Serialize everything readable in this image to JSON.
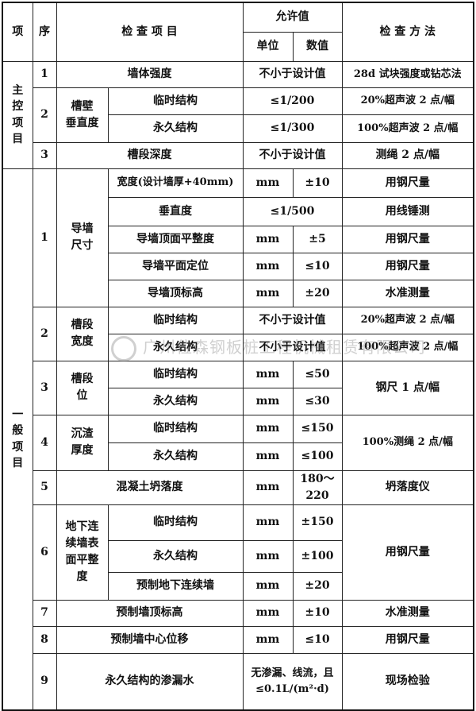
{
  "header": {
    "xiang": "项",
    "xu": "序",
    "item": "检 查 项 目",
    "allow": "允许值",
    "unit": "单位",
    "value": "数值",
    "method": "检 查 方 法"
  },
  "main": {
    "label": "主控项目",
    "r1": {
      "no": "1",
      "item": "墙体强度",
      "value": "不小于设计值",
      "method": "28d 试块强度或钻芯法"
    },
    "r2": {
      "no": "2",
      "group": "槽壁垂直度",
      "a": {
        "item": "临时结构",
        "value": "≤1/200",
        "method": "20%超声波 2 点/幅"
      },
      "b": {
        "item": "永久结构",
        "value": "≤1/300",
        "method": "100%超声波 2 点/幅"
      }
    },
    "r3": {
      "no": "3",
      "item": "槽段深度",
      "value": "不小于设计值",
      "method": "测绳 2 点/幅"
    }
  },
  "general": {
    "label": "一般项目",
    "r1": {
      "no": "1",
      "group": "导墙尺寸",
      "a": {
        "item": "宽度(设计墙厚+40mm)",
        "unit": "mm",
        "value": "±10",
        "method": "用钢尺量"
      },
      "b": {
        "item": "垂直度",
        "value": "≤1/500",
        "method": "用线锤测"
      },
      "c": {
        "item": "导墙顶面平整度",
        "unit": "mm",
        "value": "±5",
        "method": "用钢尺量"
      },
      "d": {
        "item": "导墙平面定位",
        "unit": "mm",
        "value": "≤10",
        "method": "用钢尺量"
      },
      "e": {
        "item": "导墙顶标高",
        "unit": "mm",
        "value": "±20",
        "method": "水准测量"
      }
    },
    "r2": {
      "no": "2",
      "group": "槽段宽度",
      "a": {
        "item": "临时结构",
        "value": "不小于设计值",
        "method": "20%超声波 2 点/幅"
      },
      "b": {
        "item": "永久结构",
        "value": "不小于设计值",
        "method": "100%超声波 2 点/幅"
      }
    },
    "r3": {
      "no": "3",
      "group": "槽段位",
      "method": "钢尺 1 点/幅",
      "a": {
        "item": "临时结构",
        "unit": "mm",
        "value": "≤50"
      },
      "b": {
        "item": "永久结构",
        "unit": "mm",
        "value": "≤30"
      }
    },
    "r4": {
      "no": "4",
      "group": "沉渣厚度",
      "method": "100%测绳 2 点/幅",
      "a": {
        "item": "临时结构",
        "unit": "mm",
        "value": "≤150"
      },
      "b": {
        "item": "永久结构",
        "unit": "mm",
        "value": "≤100"
      }
    },
    "r5": {
      "no": "5",
      "item": "混凝土坍落度",
      "unit": "mm",
      "value": "180～220",
      "method": "坍落度仪"
    },
    "r6": {
      "no": "6",
      "group": "地下连续墙表面平整度",
      "method": "用钢尺量",
      "a": {
        "item": "临时结构",
        "unit": "mm",
        "value": "±150"
      },
      "b": {
        "item": "永久结构",
        "unit": "mm",
        "value": "±100"
      },
      "c": {
        "item": "预制地下连续墙",
        "unit": "mm",
        "value": "±20"
      }
    },
    "r7": {
      "no": "7",
      "item": "预制墙顶标高",
      "unit": "mm",
      "value": "±10",
      "method": "水准测量"
    },
    "r8": {
      "no": "8",
      "item": "预制墙中心位移",
      "unit": "mm",
      "value": "≤10",
      "method": "用钢尺量"
    },
    "r9": {
      "no": "9",
      "item": "永久结构的渗漏水",
      "value_line1": "无渗漏、线流，且",
      "value_line2": "≤0.1L/(m²·d)",
      "method": "现场检验"
    }
  },
  "watermark": "广州位森钢板桩工程机械租赁有限公司"
}
